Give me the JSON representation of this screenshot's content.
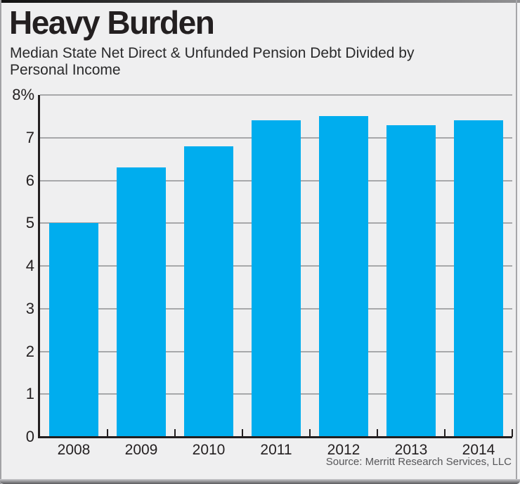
{
  "header": {
    "title": "Heavy Burden",
    "subtitle_line1": "Median State Net Direct & Unfunded Pension Debt Divided by",
    "subtitle_line2": "Personal Income"
  },
  "source": "Source: Merritt Research Services, LLC",
  "colors": {
    "background": "#EFEFF0",
    "bar": "#00ADEE",
    "gridline": "#A7A8AA",
    "axis": "#231F20",
    "text": "#231F20",
    "source_text": "#565659"
  },
  "chart_data": {
    "type": "bar",
    "title": "Heavy Burden",
    "subtitle": "Median State Net Direct & Unfunded Pension Debt Divided by Personal Income",
    "categories": [
      "2008",
      "2009",
      "2010",
      "2011",
      "2012",
      "2013",
      "2014"
    ],
    "values": [
      5.0,
      6.3,
      6.8,
      7.4,
      7.5,
      7.3,
      7.4
    ],
    "xlabel": "",
    "ylabel": "",
    "ylim": [
      0,
      8
    ],
    "yticks": [
      0,
      1,
      2,
      3,
      4,
      5,
      6,
      7,
      8
    ],
    "ytick_labels": [
      "0",
      "1",
      "2",
      "3",
      "4",
      "5",
      "6",
      "7",
      "8%"
    ],
    "unit": "percent of personal income",
    "grid": true,
    "legend": false,
    "source": "Source: Merritt Research Services, LLC"
  }
}
